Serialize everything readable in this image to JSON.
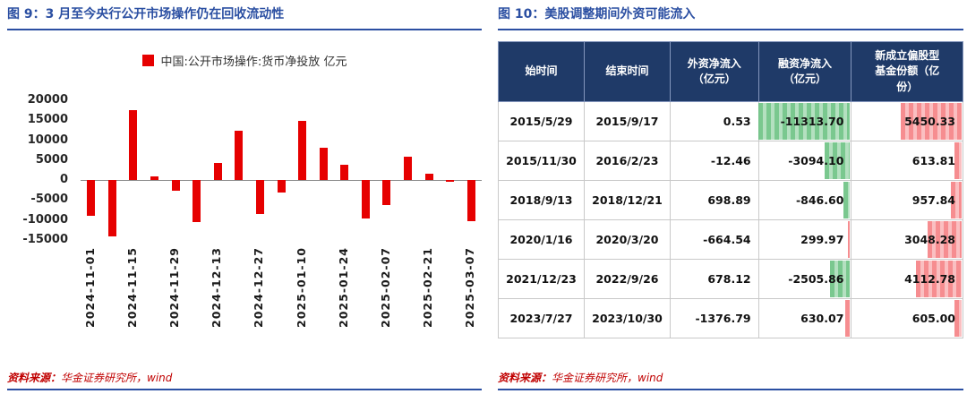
{
  "chart_data": [
    {
      "type": "bar",
      "title": "图 9：3 月至今央行公开市场操作仍在回收流动性",
      "legend": "中国:公开市场操作:货币净投放 亿元",
      "bar_color": "#e60000",
      "ylim": [
        -15000,
        20000
      ],
      "yticks": [
        20000,
        15000,
        10000,
        5000,
        0,
        -5000,
        -10000,
        -15000
      ],
      "label_every": 2,
      "x": [
        "2024-11-01",
        "2024-11-08",
        "2024-11-15",
        "2024-11-22",
        "2024-11-29",
        "2024-12-06",
        "2024-12-13",
        "2024-12-20",
        "2024-12-27",
        "2025-01-03",
        "2025-01-10",
        "2025-01-17",
        "2025-01-24",
        "2025-01-31",
        "2025-02-07",
        "2025-02-14",
        "2025-02-21",
        "2025-02-28",
        "2025-03-07"
      ],
      "values": [
        -9000,
        -14000,
        17500,
        900,
        -2600,
        -10600,
        4400,
        12300,
        -8400,
        -3000,
        14900,
        8100,
        3900,
        -9700,
        -6300,
        5800,
        1700,
        -400,
        -10300
      ]
    },
    {
      "type": "table",
      "title": "图 10：美股调整期间外资可能流入",
      "columns": [
        "始时间",
        "结束时间",
        "外资净流入\n（亿元）",
        "融资净流入\n（亿元）",
        "新成立偏股型\n基金份额（亿\n份）"
      ],
      "rows": [
        [
          "2015/5/29",
          "2015/9/17",
          "0.53",
          "-11313.70",
          "5450.33"
        ],
        [
          "2015/11/30",
          "2016/2/23",
          "-12.46",
          "-3094.10",
          "613.81"
        ],
        [
          "2018/9/13",
          "2018/12/21",
          "698.89",
          "-846.60",
          "957.84"
        ],
        [
          "2020/1/16",
          "2020/3/20",
          "-664.54",
          "299.97",
          "3048.28"
        ],
        [
          "2021/12/23",
          "2022/9/26",
          "678.12",
          "-2505.86",
          "4112.78"
        ],
        [
          "2023/7/27",
          "2023/10/30",
          "-1376.79",
          "630.07",
          "605.00"
        ]
      ],
      "negative_bar_color": "#63be7b",
      "positive_bar_color": "#f4797d",
      "header_bg_color": "#1f3a68"
    }
  ],
  "left_panel": {
    "source_prefix": "资料来源：",
    "source_text": "华金证券研究所，wind"
  },
  "right_panel": {
    "source_prefix": "资料来源：",
    "source_text": "华金证券研究所，wind"
  },
  "accent_colors": {
    "title_blue": "#2b4fa2",
    "source_red": "#c00000"
  }
}
